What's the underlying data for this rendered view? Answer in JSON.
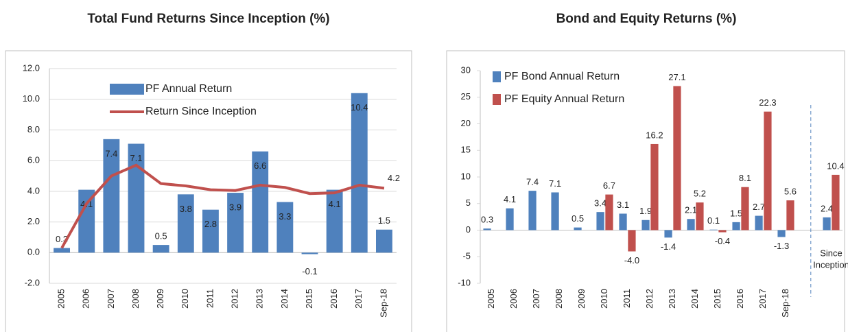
{
  "chart_data": [
    {
      "type": "bar",
      "title": "Total Fund Returns Since Inception (%)",
      "categories": [
        "2005",
        "2006",
        "2007",
        "2008",
        "2009",
        "2010",
        "2011",
        "2012",
        "2013",
        "2014",
        "2015",
        "2016",
        "2017",
        "Sep-18"
      ],
      "series": [
        {
          "name": "PF Annual Return",
          "color": "#4f81bd",
          "kind": "bar",
          "data_labels": true,
          "values": [
            0.3,
            4.1,
            7.4,
            7.1,
            0.5,
            3.8,
            2.8,
            3.9,
            6.6,
            3.3,
            -0.1,
            4.1,
            10.4,
            1.5
          ]
        },
        {
          "name": "Return Since Inception",
          "color": "#c0504d",
          "kind": "line",
          "end_label": true,
          "values": [
            0.3,
            3.2,
            5.0,
            5.7,
            4.5,
            4.35,
            4.1,
            4.05,
            4.4,
            4.25,
            3.85,
            3.9,
            4.4,
            4.2
          ]
        }
      ],
      "ylim": [
        -2,
        12
      ],
      "yticks": [
        {
          "value": -2,
          "label": "-2.0"
        },
        {
          "value": 0,
          "label": "0.0"
        },
        {
          "value": 2,
          "label": "2.0"
        },
        {
          "value": 4,
          "label": "4.0"
        },
        {
          "value": 6,
          "label": "6.0"
        },
        {
          "value": 8,
          "label": "8.0"
        },
        {
          "value": 10,
          "label": "10.0"
        },
        {
          "value": 12,
          "label": "12.0"
        }
      ],
      "grid": true,
      "legend": "top-center"
    },
    {
      "type": "bar",
      "title": "Bond and Equity Returns (%)",
      "categories": [
        "2005",
        "2006",
        "2007",
        "2008",
        "2009",
        "2010",
        "2011",
        "2012",
        "2013",
        "2014",
        "2015",
        "2016",
        "2017",
        "Sep-18",
        null,
        "Since Inception"
      ],
      "series": [
        {
          "name": "PF Bond Annual Return",
          "color": "#4f81bd",
          "kind": "bar",
          "data_labels": true,
          "values": [
            0.3,
            4.1,
            7.4,
            7.1,
            0.5,
            3.4,
            3.1,
            1.9,
            -1.4,
            2.1,
            0.1,
            1.5,
            2.7,
            -1.3,
            null,
            2.4
          ]
        },
        {
          "name": "PF Equity Annual Return",
          "color": "#c0504d",
          "kind": "bar",
          "data_labels": true,
          "values": [
            null,
            null,
            null,
            null,
            null,
            6.7,
            -4.0,
            16.2,
            27.1,
            5.2,
            -0.4,
            8.1,
            22.3,
            5.6,
            null,
            10.4
          ],
          "value_labels": [
            null,
            null,
            null,
            null,
            null,
            "6.7",
            "-4.0",
            "16.2",
            "27.1",
            "5.2",
            "-0.4",
            "8.1",
            "22.3",
            "5.6",
            null,
            "10.4"
          ]
        }
      ],
      "ylim": [
        -10,
        30
      ],
      "yticks": [
        -10,
        -5,
        0,
        5,
        10,
        15,
        20,
        25,
        30
      ],
      "grid": false,
      "legend": "top-left"
    }
  ]
}
